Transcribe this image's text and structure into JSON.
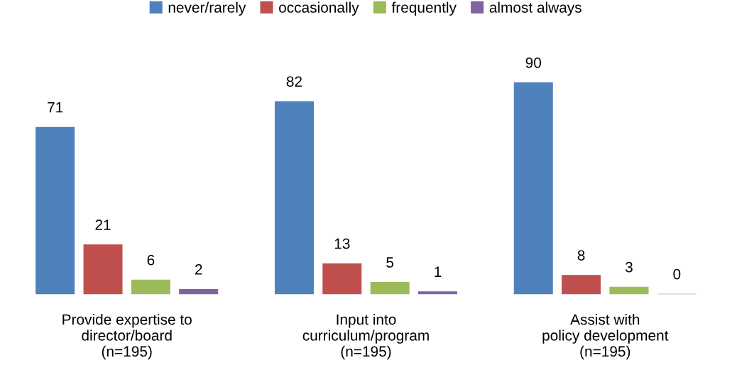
{
  "chart_data": {
    "type": "bar",
    "categories": [
      "Provide expertise to\ndirector/board\n(n=195)",
      "Input into\ncurriculum/program\n(n=195)",
      "Assist with\npolicy development\n(n=195)"
    ],
    "series": [
      {
        "name": "never/rarely",
        "color": "#4f81bd",
        "values": [
          71,
          82,
          90
        ]
      },
      {
        "name": "occasionally",
        "color": "#c0504d",
        "values": [
          21,
          13,
          8
        ]
      },
      {
        "name": "frequently",
        "color": "#9bbb59",
        "values": [
          6,
          5,
          3
        ]
      },
      {
        "name": "almost always",
        "color": "#8064a2",
        "values": [
          2,
          1,
          0
        ]
      }
    ],
    "data_labels": true,
    "legend": "top",
    "grid": false
  }
}
